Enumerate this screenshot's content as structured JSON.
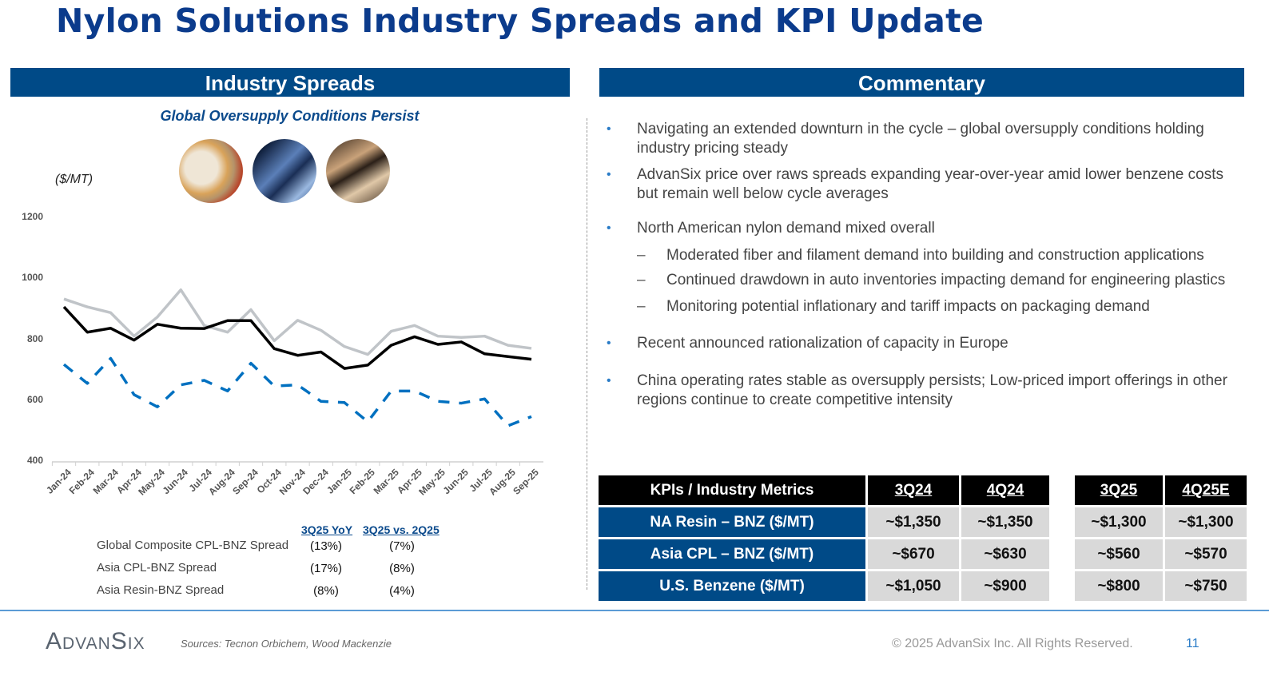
{
  "title": "Nylon Solutions Industry Spreads and KPI Update",
  "left": {
    "header": "Industry Spreads",
    "subtitle": "Global Oversupply Conditions Persist",
    "unit": "($/MT)",
    "photos": [
      "carpet-fiber-photo",
      "automotive-photo",
      "food-packaging-photo"
    ]
  },
  "right": {
    "header": "Commentary",
    "bullets": [
      {
        "level": 1,
        "text": "Navigating an extended downturn in the cycle – global oversupply conditions holding industry pricing steady"
      },
      {
        "level": 1,
        "text": "AdvanSix price over raws spreads expanding year-over-year amid lower benzene costs but remain well below cycle averages"
      },
      {
        "level": 1,
        "text": "North American nylon demand mixed overall"
      },
      {
        "level": 2,
        "text": "Moderated fiber and filament demand into building and construction applications"
      },
      {
        "level": 2,
        "text": "Continued drawdown in auto inventories impacting demand for engineering plastics"
      },
      {
        "level": 2,
        "text": "Monitoring potential inflationary and tariff impacts on packaging demand"
      },
      {
        "level": 1,
        "text": "Recent announced rationalization of capacity in Europe"
      },
      {
        "level": 1,
        "text": "China operating rates stable as oversupply persists; Low-priced import offerings in other regions continue to create competitive intensity"
      }
    ],
    "bullet_symbol": "•",
    "dash_symbol": "–"
  },
  "kpi_table": {
    "headers": [
      "KPIs / Industry Metrics",
      "3Q24",
      "4Q24",
      "3Q25",
      "4Q25E"
    ],
    "rows": [
      {
        "label": "NA Resin – BNZ ($/MT)",
        "values": [
          "~$1,350",
          "~$1,350",
          "~$1,300",
          "~$1,300"
        ]
      },
      {
        "label": "Asia CPL – BNZ ($/MT)",
        "values": [
          "~$670",
          "~$630",
          "~$560",
          "~$570"
        ]
      },
      {
        "label": "U.S. Benzene ($/MT)",
        "values": [
          "~$1,050",
          "~$900",
          "~$800",
          "~$750"
        ]
      }
    ]
  },
  "chart_data": {
    "type": "line",
    "title": "",
    "ylabel": "($/MT)",
    "ylim": [
      400,
      1200
    ],
    "yticks": [
      "1200",
      "1000",
      "800",
      "600",
      "400"
    ],
    "categories": [
      "Jan-24",
      "Feb-24",
      "Mar-24",
      "Apr-24",
      "May-24",
      "Jun-24",
      "Jul-24",
      "Aug-24",
      "Sep-24",
      "Oct-24",
      "Nov-24",
      "Dec-24",
      "Jan-25",
      "Feb-25",
      "Mar-25",
      "Apr-25",
      "May-25",
      "Jun-25",
      "Jul-25",
      "Aug-25",
      "Sep-25"
    ],
    "legend_headers": [
      "3Q25 YoY",
      "3Q25 vs. 2Q25"
    ],
    "series": [
      {
        "name": "Global Composite CPL-BNZ Spread",
        "color": "#000000",
        "style": "solid",
        "yoy": "(13%)",
        "qoq": "(7%)",
        "values": [
          906,
          823,
          836,
          797,
          849,
          836,
          835,
          861,
          861,
          769,
          747,
          758,
          704,
          715,
          780,
          808,
          783,
          791,
          752,
          743,
          734
        ]
      },
      {
        "name": "Asia CPL-BNZ Spread",
        "color": "#0070c0",
        "style": "dashed",
        "yoy": "(17%)",
        "qoq": "(8%)",
        "values": [
          717,
          655,
          737,
          618,
          578,
          650,
          665,
          630,
          721,
          646,
          650,
          596,
          592,
          529,
          630,
          630,
          596,
          590,
          604,
          516,
          546
        ]
      },
      {
        "name": "Asia Resin-BNZ Spread",
        "color": "#c0c4c8",
        "style": "solid",
        "yoy": "(8%)",
        "qoq": "(4%)",
        "values": [
          932,
          906,
          887,
          810,
          873,
          962,
          845,
          823,
          897,
          795,
          862,
          829,
          776,
          750,
          826,
          845,
          810,
          806,
          810,
          780,
          770
        ]
      }
    ]
  },
  "footer": {
    "logo": "AdvanSix",
    "sources": "Sources: Tecnon Orbichem, Wood Mackenzie",
    "copyright": "© 2025 AdvanSix Inc. All Rights Reserved.",
    "page": "11"
  }
}
